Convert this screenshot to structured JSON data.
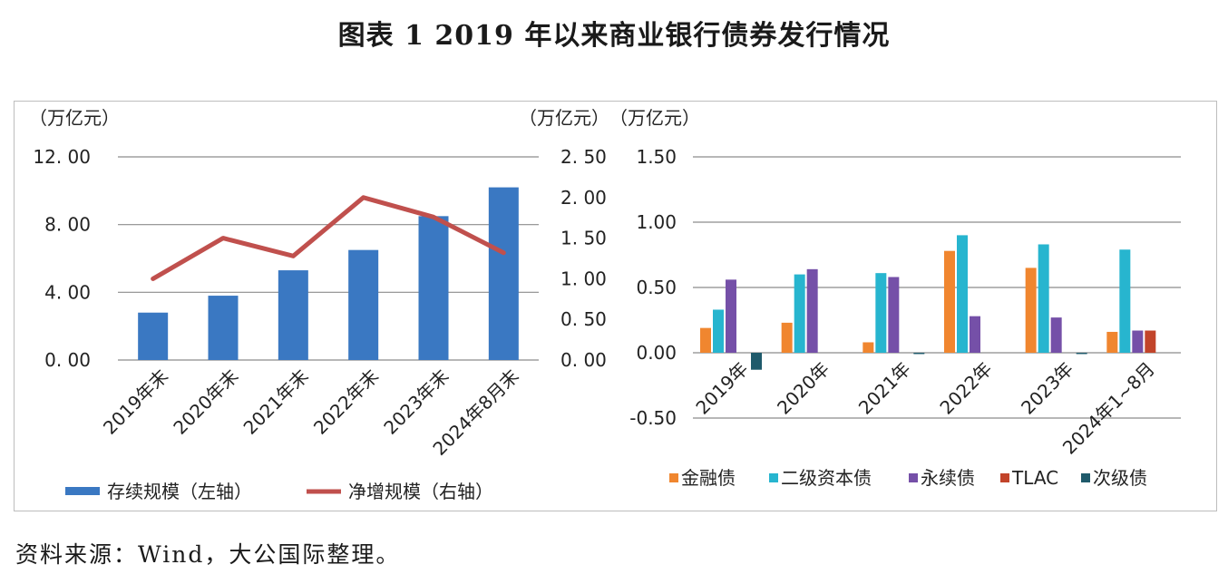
{
  "title": "图表 1  2019 年以来商业银行债券发行情况",
  "source": "资料来源：Wind，大公国际整理。",
  "chart_data": [
    {
      "type": "bar",
      "categories": [
        "2019年末",
        "2020年末",
        "2021年末",
        "2022年末",
        "2023年末",
        "2024年8月末"
      ],
      "left_unit": "（万亿元）",
      "right_unit": "（万亿元）",
      "left_ticks": [
        "0. 00",
        "4. 00",
        "8. 00",
        "12. 00"
      ],
      "right_ticks": [
        "0. 00",
        "0. 50",
        "1. 00",
        "1. 50",
        "2. 00",
        "2. 50"
      ],
      "ylim_left": [
        0,
        12
      ],
      "ylim_right": [
        0,
        2.5
      ],
      "grid": true,
      "legend_position": "bottom",
      "series": [
        {
          "name": "存续规模（左轴）",
          "kind": "bar",
          "axis": "left",
          "color": "#3a78c2",
          "values": [
            2.8,
            3.8,
            5.3,
            6.5,
            8.5,
            10.2
          ]
        },
        {
          "name": "净增规模（右轴）",
          "kind": "line",
          "axis": "right",
          "color": "#c0504d",
          "values": [
            1.0,
            1.5,
            1.28,
            2.0,
            1.76,
            1.32
          ]
        }
      ]
    },
    {
      "type": "bar",
      "categories": [
        "2019年",
        "2020年",
        "2021年",
        "2022年",
        "2023年",
        "2024年1~8月"
      ],
      "unit": "（万亿元）",
      "ticks": [
        "-0.50",
        "0.00",
        "0.50",
        "1.00",
        "1.50"
      ],
      "ylim": [
        -0.5,
        1.5
      ],
      "grid": true,
      "legend_position": "bottom",
      "negative_tick_color": "#e0262a",
      "series": [
        {
          "name": "金融债",
          "color": "#f0862f",
          "values": [
            0.19,
            0.23,
            0.08,
            0.78,
            0.65,
            0.16
          ]
        },
        {
          "name": "二级资本债",
          "color": "#27b5cf",
          "values": [
            0.33,
            0.6,
            0.61,
            0.9,
            0.83,
            0.79
          ]
        },
        {
          "name": "永续债",
          "color": "#7550a8",
          "values": [
            0.56,
            0.64,
            0.58,
            0.28,
            0.27,
            0.17
          ]
        },
        {
          "name": "TLAC",
          "color": "#c2442a",
          "values": [
            0,
            0,
            0,
            0,
            0,
            0.17
          ]
        },
        {
          "name": "次级债",
          "color": "#1f5a6b",
          "values": [
            -0.13,
            0,
            -0.01,
            0,
            -0.01,
            0
          ]
        }
      ]
    }
  ]
}
